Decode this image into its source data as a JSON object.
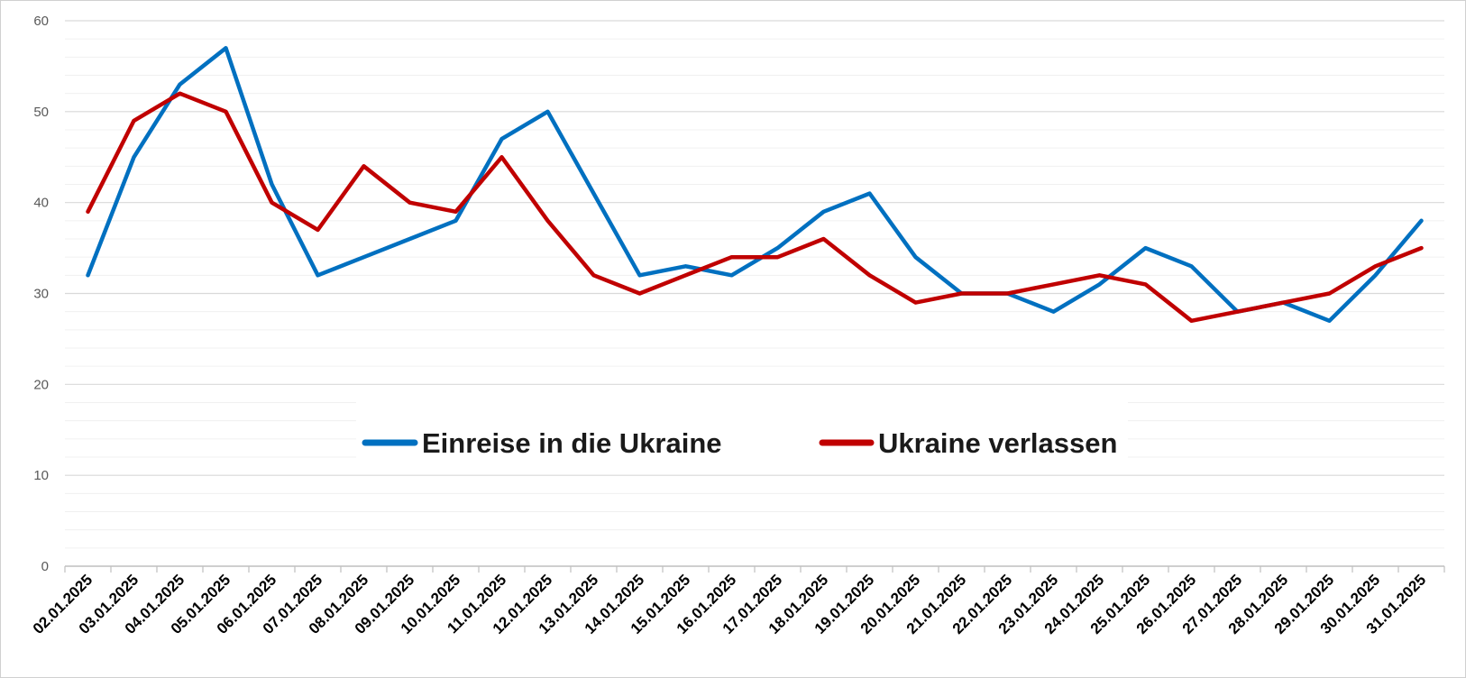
{
  "chart_data": {
    "type": "line",
    "categories": [
      "02.01.2025",
      "03.01.2025",
      "04.01.2025",
      "05.01.2025",
      "06.01.2025",
      "07.01.2025",
      "08.01.2025",
      "09.01.2025",
      "10.01.2025",
      "11.01.2025",
      "12.01.2025",
      "13.01.2025",
      "14.01.2025",
      "15.01.2025",
      "16.01.2025",
      "17.01.2025",
      "18.01.2025",
      "19.01.2025",
      "20.01.2025",
      "21.01.2025",
      "22.01.2025",
      "23.01.2025",
      "24.01.2025",
      "25.01.2025",
      "26.01.2025",
      "27.01.2025",
      "28.01.2025",
      "29.01.2025",
      "30.01.2025",
      "31.01.2025"
    ],
    "series": [
      {
        "name": "Einreise in die Ukraine",
        "color": "#0070C0",
        "values": [
          32,
          45,
          53,
          57,
          42,
          32,
          34,
          36,
          38,
          47,
          50,
          41,
          32,
          33,
          32,
          35,
          39,
          41,
          34,
          30,
          30,
          28,
          31,
          35,
          33,
          28,
          29,
          27,
          32,
          38
        ]
      },
      {
        "name": "Ukraine verlassen",
        "color": "#C00000",
        "values": [
          39,
          49,
          52,
          50,
          40,
          37,
          44,
          40,
          39,
          45,
          38,
          32,
          30,
          32,
          34,
          34,
          36,
          32,
          29,
          30,
          30,
          31,
          32,
          31,
          27,
          28,
          29,
          30,
          33,
          35
        ]
      }
    ],
    "ylim": [
      0,
      60
    ],
    "yticks": [
      0,
      10,
      20,
      30,
      40,
      50,
      60
    ],
    "title": "",
    "xlabel": "",
    "ylabel": "",
    "grid": true,
    "legend_position": "center"
  }
}
